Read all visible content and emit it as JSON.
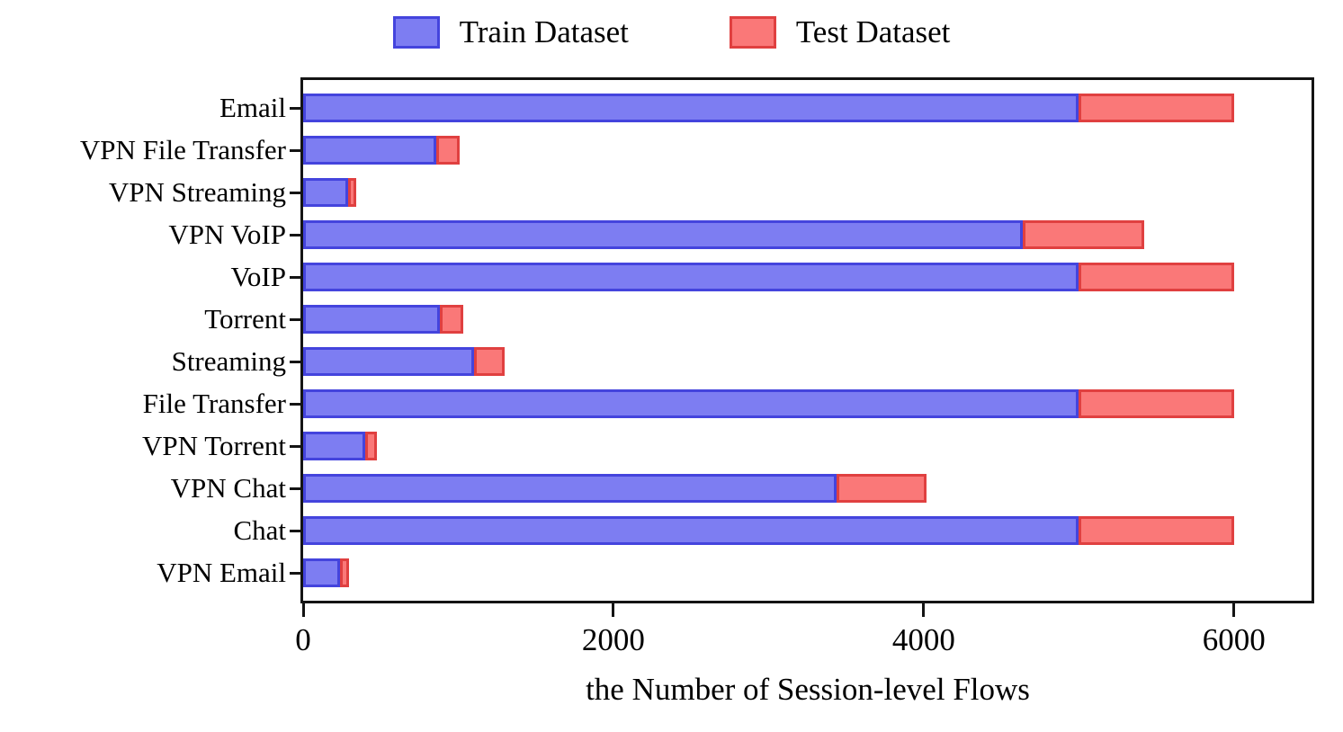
{
  "chart_data": {
    "type": "bar",
    "orientation": "horizontal",
    "stacked": true,
    "title": "",
    "xlabel": "the Number of Session-level Flows",
    "ylabel": "",
    "xlim": [
      0,
      6500
    ],
    "xticks": [
      0,
      2000,
      4000,
      6000
    ],
    "grid": false,
    "legend_position": "top-center",
    "categories": [
      "Email",
      "VPN File Transfer",
      "VPN Streaming",
      "VPN VoIP",
      "VoIP",
      "Torrent",
      "Streaming",
      "File Transfer",
      "VPN Torrent",
      "VPN Chat",
      "Chat",
      "VPN Email"
    ],
    "series": [
      {
        "name": "Train Dataset",
        "fill_color": "#7d7df2",
        "edge_color": "#4444dd",
        "values": [
          5000,
          860,
          290,
          4640,
          5000,
          880,
          1100,
          5000,
          400,
          3440,
          5000,
          240
        ]
      },
      {
        "name": "Test Dataset",
        "fill_color": "#fa7878",
        "edge_color": "#e04040",
        "values": [
          1000,
          150,
          55,
          780,
          1000,
          150,
          200,
          1000,
          75,
          580,
          1000,
          55
        ]
      }
    ]
  },
  "colors": {
    "background": "#ffffff",
    "axis": "#141414",
    "text": "#000000"
  }
}
